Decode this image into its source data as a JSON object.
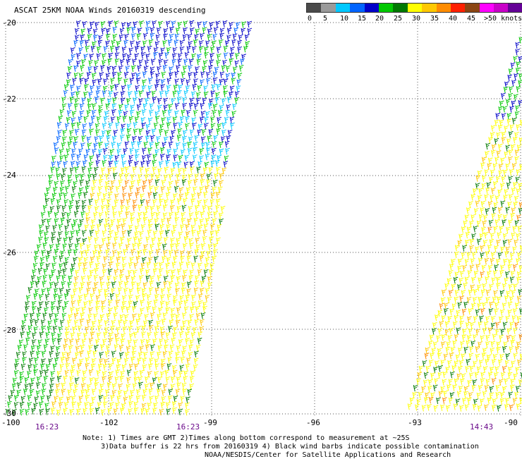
{
  "title": "ASCAT 25KM NOAA Winds 20160319 descending",
  "legend": {
    "colors": [
      "#4a4a4a",
      "#9a9a9a",
      "#00c8ff",
      "#0064ff",
      "#0000c8",
      "#00c800",
      "#007800",
      "#ffff00",
      "#ffc800",
      "#ff8c00",
      "#ff2000",
      "#8b4513",
      "#ff00ff",
      "#c800c8",
      "#640096"
    ],
    "labels": [
      "0",
      "5",
      "10",
      "15",
      "20",
      "25",
      "30",
      "35",
      "40",
      "45",
      ">50 knots"
    ]
  },
  "map": {
    "lat_labels": [
      "-20",
      "-22",
      "-24",
      "-26",
      "-28",
      "-30"
    ],
    "lon_labels": [
      "-100",
      "-102",
      "-99",
      "-96",
      "-93",
      "-90"
    ],
    "time_labels": [
      "16:23",
      "16:23",
      "14:43"
    ]
  },
  "notes": {
    "line1": "Note: 1) Times are GMT 2)Times along bottom correspond to measurement at ~25S",
    "line2": "3)Data buffer is 22 hrs from 20160319 4) Black wind barbs indicate possible contamination",
    "line3": "NOAA/NESDIS/Center for Satellite Applications and Research"
  }
}
